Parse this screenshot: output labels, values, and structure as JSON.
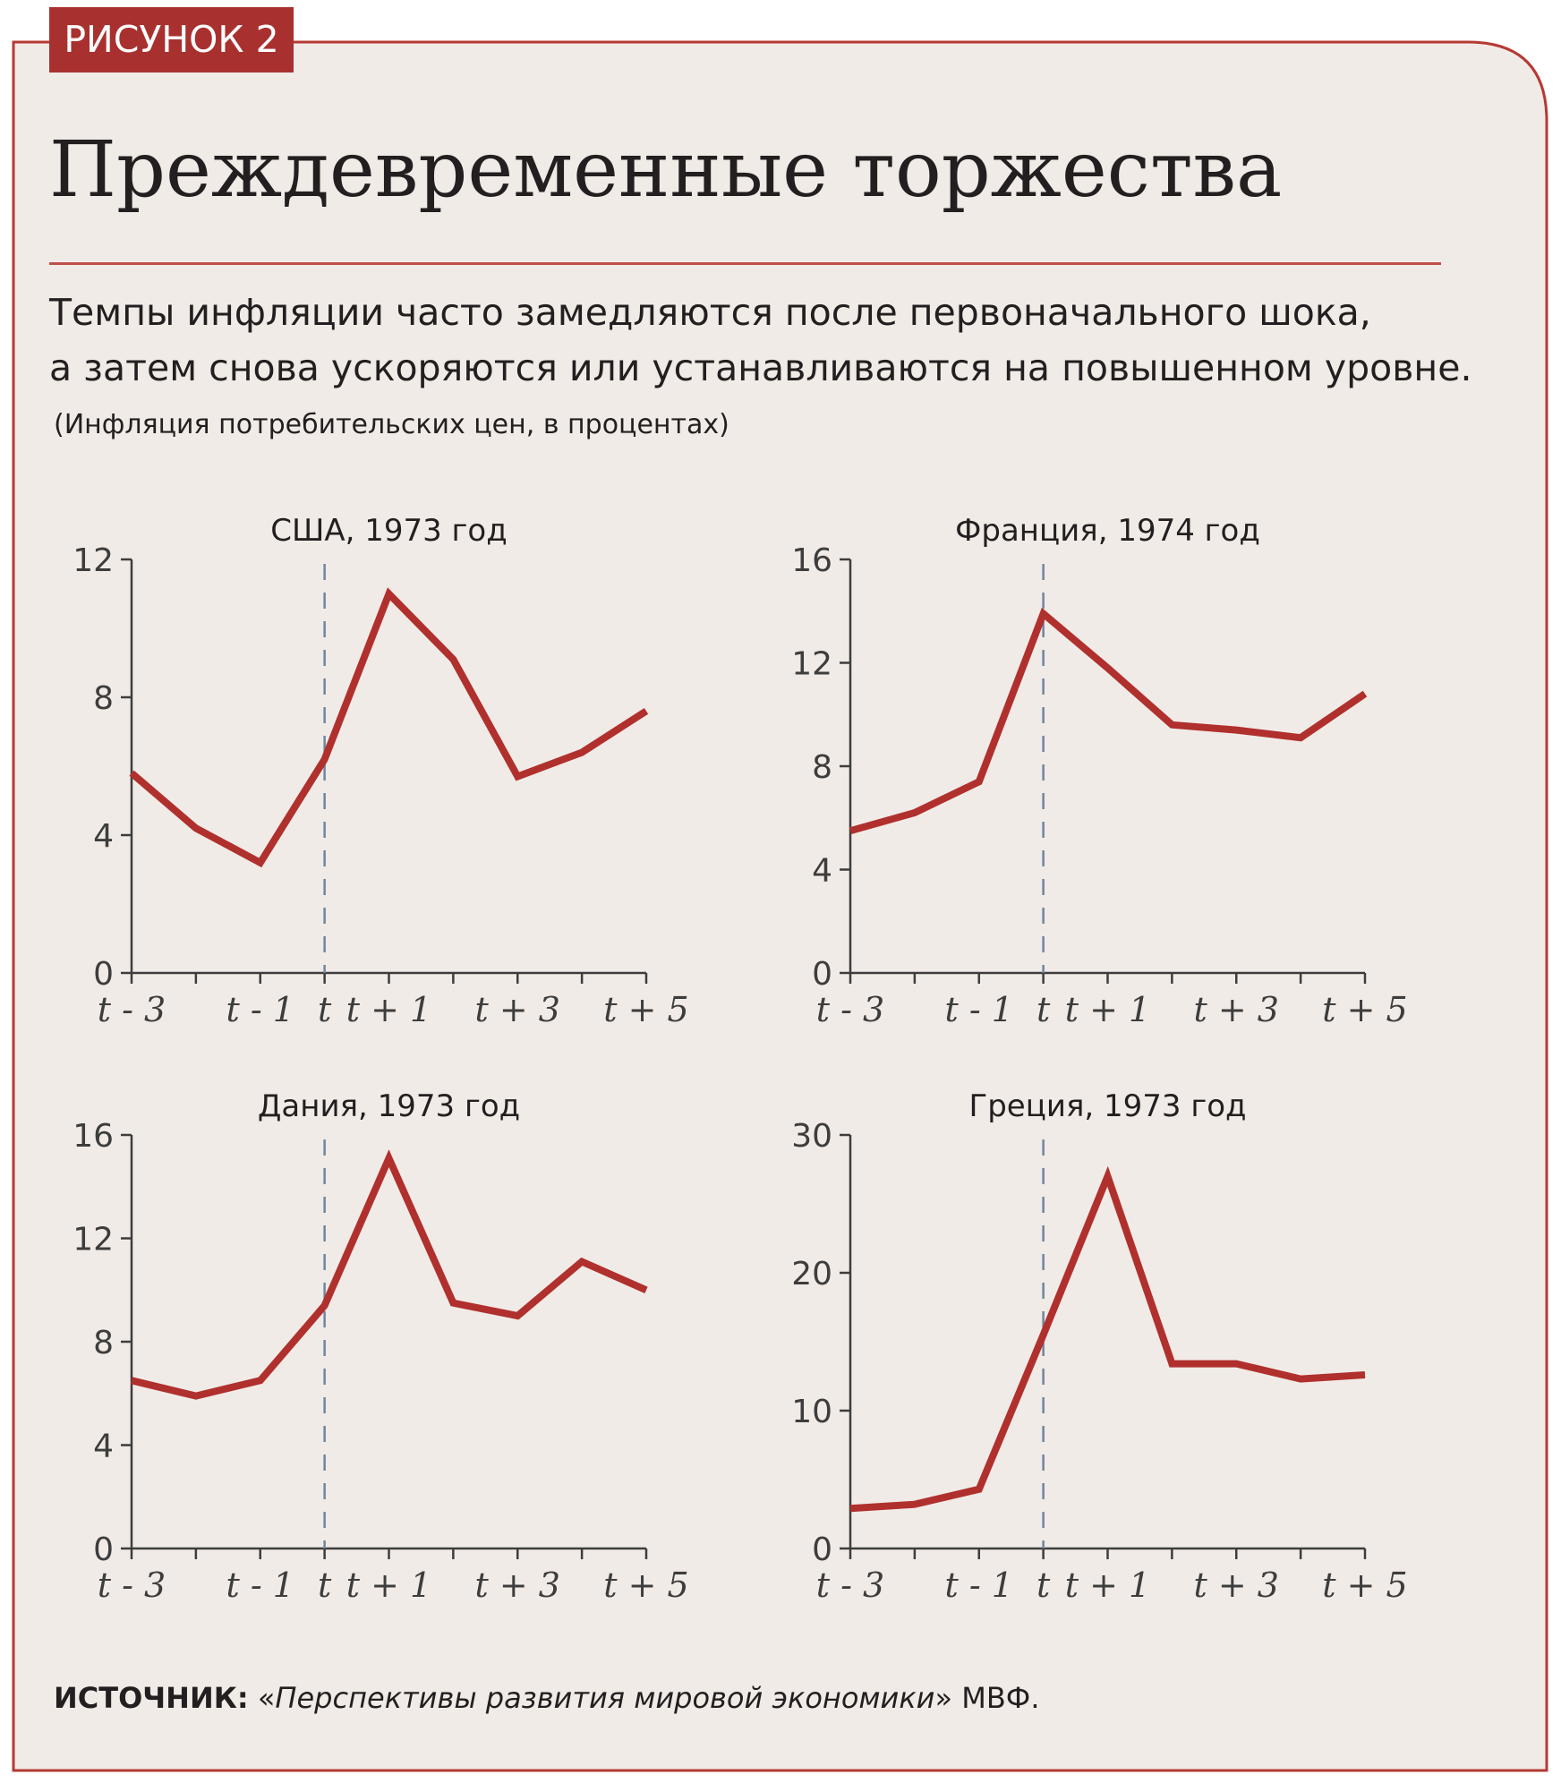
{
  "figure": {
    "badge": "РИСУНОК 2",
    "title": "Преждевременные торжества",
    "subtitle_lines": [
      "Темпы инфляции часто замедляются после первоначального шока,",
      "а затем снова ускоряются или устанавливаются на повышенном уровне."
    ],
    "units": "(Инфляция потребительских цен, в процентах)",
    "source": {
      "label": "ИСТОЧНИК:",
      "open_quote": " «",
      "work": "Перспективы развития мировой экономики",
      "close": "» МВФ."
    },
    "colors": {
      "frame": "#b53a33",
      "background": "#f1ebe7",
      "badge": "#a8312f",
      "line": "#b0302d",
      "axis": "#3d3d3d",
      "event_marker": "#6e879e"
    }
  },
  "chart_data": [
    {
      "type": "line",
      "title": "США, 1973 год",
      "x": [
        -3,
        -2,
        -1,
        0,
        1,
        2,
        3,
        4,
        5
      ],
      "x_tick_values": [
        -3,
        -1,
        0,
        1,
        3,
        5
      ],
      "x_tick_labels": [
        "t - 3",
        "t - 1",
        "t",
        "t + 1",
        "t + 3",
        "t + 5"
      ],
      "xlim": [
        -3,
        5
      ],
      "ylim": [
        0,
        12
      ],
      "y_ticks": [
        0,
        4,
        8,
        12
      ],
      "event_line_x": 0,
      "series": [
        {
          "values": [
            5.8,
            4.2,
            3.2,
            6.2,
            11.0,
            9.1,
            5.7,
            6.4,
            7.6
          ]
        }
      ]
    },
    {
      "type": "line",
      "title": "Франция, 1974 год",
      "x": [
        -3,
        -2,
        -1,
        0,
        1,
        2,
        3,
        4,
        5
      ],
      "x_tick_values": [
        -3,
        -1,
        0,
        1,
        3,
        5
      ],
      "x_tick_labels": [
        "t - 3",
        "t - 1",
        "t",
        "t + 1",
        "t + 3",
        "t + 5"
      ],
      "xlim": [
        -3,
        5
      ],
      "ylim": [
        0,
        16
      ],
      "y_ticks": [
        0,
        4,
        8,
        12,
        16
      ],
      "event_line_x": 0,
      "series": [
        {
          "values": [
            5.5,
            6.2,
            7.4,
            13.9,
            11.8,
            9.6,
            9.4,
            9.1,
            10.8
          ]
        }
      ]
    },
    {
      "type": "line",
      "title": "Дания, 1973 год",
      "x": [
        -3,
        -2,
        -1,
        0,
        1,
        2,
        3,
        4,
        5
      ],
      "x_tick_values": [
        -3,
        -1,
        0,
        1,
        3,
        5
      ],
      "x_tick_labels": [
        "t - 3",
        "t - 1",
        "t",
        "t + 1",
        "t + 3",
        "t + 5"
      ],
      "xlim": [
        -3,
        5
      ],
      "ylim": [
        0,
        16
      ],
      "y_ticks": [
        0,
        4,
        8,
        12,
        16
      ],
      "event_line_x": 0,
      "series": [
        {
          "values": [
            6.5,
            5.9,
            6.5,
            9.4,
            15.1,
            9.5,
            9.0,
            11.1,
            10.0
          ]
        }
      ]
    },
    {
      "type": "line",
      "title": "Греция, 1973 год",
      "x": [
        -3,
        -2,
        -1,
        0,
        1,
        2,
        3,
        4,
        5
      ],
      "x_tick_values": [
        -3,
        -1,
        0,
        1,
        3,
        5
      ],
      "x_tick_labels": [
        "t - 3",
        "t - 1",
        "t",
        "t + 1",
        "t + 3",
        "t + 5"
      ],
      "xlim": [
        -3,
        5
      ],
      "ylim": [
        0,
        30
      ],
      "y_ticks": [
        0,
        10,
        20,
        30
      ],
      "event_line_x": 0,
      "series": [
        {
          "values": [
            2.9,
            3.2,
            4.3,
            15.5,
            27.0,
            13.4,
            13.4,
            12.3,
            12.6
          ]
        }
      ]
    }
  ]
}
